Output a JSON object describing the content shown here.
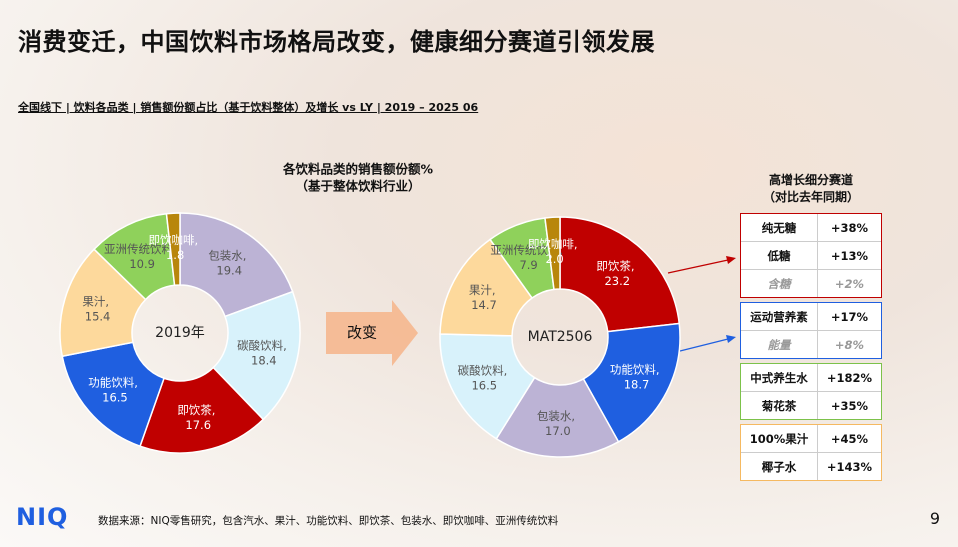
{
  "title": "消费变迁，中国饮料市场格局改变，健康细分赛道引领发展",
  "subtitle": "全国线下 | 饮料各品类 | 销售额份额占比（基于饮料整体）及增长 vs LY | 2019 – 2025 06",
  "charts_heading": [
    "各饮料品类的销售额份额%",
    "（基于整体饮料行业）"
  ],
  "chart_data": [
    {
      "type": "pie",
      "center_label": "2019年",
      "values": [
        19.4,
        18.4,
        17.6,
        16.5,
        15.4,
        10.9,
        1.8
      ],
      "value_labels": [
        "包装水, 19.4",
        "碳酸饮料, 18.4",
        "即饮茶, 17.6",
        "功能饮料, 16.5",
        "果汁, 15.4",
        "亚洲传统饮料, 10.9",
        "即饮咖啡, 1.8"
      ],
      "colors": [
        "#bcb3d5",
        "#d8f2fb",
        "#c00000",
        "#1f5fe0",
        "#fdd99c",
        "#8fd15b",
        "#b8860b"
      ]
    },
    {
      "type": "pie",
      "center_label": "MAT2506",
      "values": [
        23.2,
        18.7,
        17.0,
        16.5,
        14.7,
        7.9,
        2.0
      ],
      "value_labels": [
        "即饮茶, 23.2",
        "功能饮料, 18.7",
        "包装水, 17.0",
        "碳酸饮料, 16.5",
        "果汁, 14.7",
        "亚洲传统饮料, 7.9",
        "即饮咖啡, 2.0"
      ],
      "colors": [
        "#c00000",
        "#1f5fe0",
        "#bcb3d5",
        "#d8f2fb",
        "#fdd99c",
        "#8fd15b",
        "#b8860b"
      ]
    }
  ],
  "transition_label": "改变",
  "growth_panel": {
    "title": [
      "高增长细分赛道",
      "（对比去年同期）"
    ],
    "groups": [
      {
        "border": "#c00000",
        "rows": [
          {
            "segment": "纯无糖",
            "growth": "+38%",
            "muted": false
          },
          {
            "segment": "低糖",
            "growth": "+13%",
            "muted": false
          },
          {
            "segment": "含糖",
            "growth": "+2%",
            "muted": true
          }
        ]
      },
      {
        "border": "#1f5fe0",
        "rows": [
          {
            "segment": "运动营养素",
            "growth": "+17%",
            "muted": false
          },
          {
            "segment": "能量",
            "growth": "+8%",
            "muted": true
          }
        ]
      },
      {
        "border": "#7cc24a",
        "rows": [
          {
            "segment": "中式养生水",
            "growth": "+182%",
            "muted": false
          },
          {
            "segment": "菊花茶",
            "growth": "+35%",
            "muted": false
          }
        ]
      },
      {
        "border": "#f5b961",
        "rows": [
          {
            "segment": "100%果汁",
            "growth": "+45%",
            "muted": false
          },
          {
            "segment": "椰子水",
            "growth": "+143%",
            "muted": false
          }
        ]
      }
    ]
  },
  "footer": {
    "brand": "NIQ",
    "source": "数据来源：NIQ零售研究，包含汽水、果汁、功能饮料、即饮茶、包装水、即饮咖啡、亚洲传统饮料",
    "page": "9"
  }
}
